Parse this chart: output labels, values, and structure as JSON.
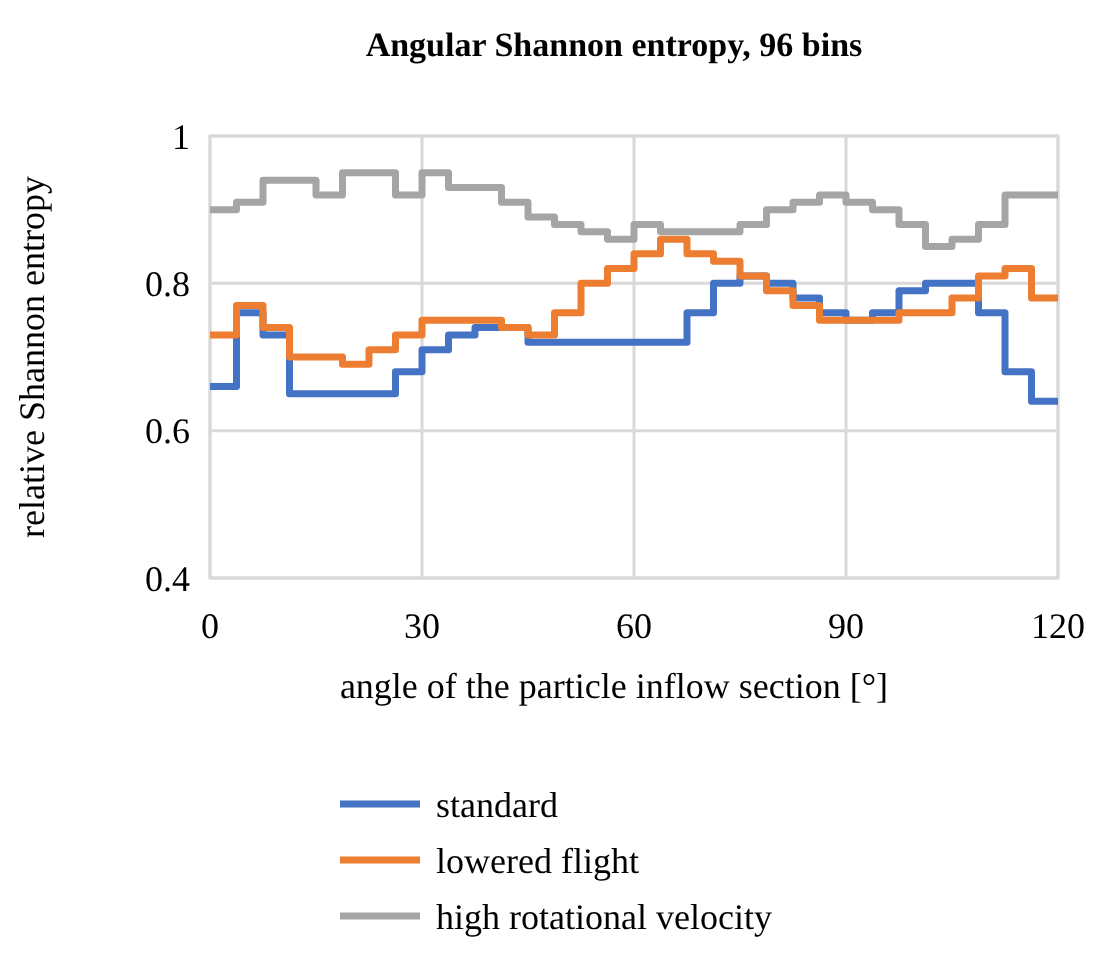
{
  "chart_data": {
    "type": "step",
    "title": "Angular Shannon entropy, 96 bins",
    "xlabel": "angle of the particle inflow section [°]",
    "ylabel": "relative Shannon entropy",
    "x": [
      0,
      3.75,
      7.5,
      11.25,
      15,
      18.75,
      22.5,
      26.25,
      30,
      33.75,
      37.5,
      41.25,
      45,
      48.75,
      52.5,
      56.25,
      60,
      63.75,
      67.5,
      71.25,
      75,
      78.75,
      82.5,
      86.25,
      90,
      93.75,
      97.5,
      101.25,
      105,
      108.75,
      112.5,
      116.25,
      120
    ],
    "series": [
      {
        "name": "standard",
        "color": "#4472c4",
        "values": [
          0.66,
          0.76,
          0.73,
          0.65,
          0.65,
          0.65,
          0.65,
          0.68,
          0.71,
          0.73,
          0.74,
          0.74,
          0.72,
          0.72,
          0.72,
          0.72,
          0.72,
          0.72,
          0.76,
          0.8,
          0.81,
          0.8,
          0.78,
          0.76,
          0.75,
          0.76,
          0.79,
          0.8,
          0.8,
          0.76,
          0.68,
          0.64,
          0.64
        ]
      },
      {
        "name": "lowered flight",
        "color": "#ed7d31",
        "values": [
          0.73,
          0.77,
          0.74,
          0.7,
          0.7,
          0.69,
          0.71,
          0.73,
          0.75,
          0.75,
          0.75,
          0.74,
          0.73,
          0.76,
          0.8,
          0.82,
          0.84,
          0.86,
          0.84,
          0.83,
          0.81,
          0.79,
          0.77,
          0.75,
          0.75,
          0.75,
          0.76,
          0.76,
          0.78,
          0.81,
          0.82,
          0.78,
          0.78
        ]
      },
      {
        "name": "high rotational velocity",
        "color": "#a5a5a5",
        "values": [
          0.9,
          0.91,
          0.94,
          0.94,
          0.92,
          0.95,
          0.95,
          0.92,
          0.95,
          0.93,
          0.93,
          0.91,
          0.89,
          0.88,
          0.87,
          0.86,
          0.88,
          0.87,
          0.87,
          0.87,
          0.88,
          0.9,
          0.91,
          0.92,
          0.91,
          0.9,
          0.88,
          0.85,
          0.86,
          0.88,
          0.92,
          0.92,
          0.92
        ]
      }
    ],
    "xlim": [
      0,
      120
    ],
    "xticks": [
      0,
      30,
      60,
      90,
      120
    ],
    "ylim": [
      0.4,
      1
    ],
    "yticks": [
      0.4,
      0.6,
      0.8,
      1
    ],
    "grid": true,
    "legend": "bottom",
    "line_style": "solid"
  }
}
